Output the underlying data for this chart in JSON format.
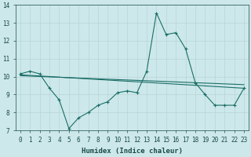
{
  "xlabel": "Humidex (Indice chaleur)",
  "xlim": [
    -0.5,
    23.5
  ],
  "ylim": [
    7,
    14
  ],
  "yticks": [
    7,
    8,
    9,
    10,
    11,
    12,
    13,
    14
  ],
  "xticks": [
    0,
    1,
    2,
    3,
    4,
    5,
    6,
    7,
    8,
    9,
    10,
    11,
    12,
    13,
    14,
    15,
    16,
    17,
    18,
    19,
    20,
    21,
    22,
    23
  ],
  "bg_color": "#cde8ea",
  "line_color": "#1a6e68",
  "grid_color": "#b8d4d6",
  "line1_x": [
    0,
    1,
    2,
    3,
    4,
    5,
    6,
    7,
    8,
    9,
    10,
    11,
    12,
    13,
    14,
    15,
    16,
    17,
    18,
    19,
    20,
    21,
    22,
    23
  ],
  "line1_y": [
    10.15,
    10.3,
    10.15,
    9.35,
    8.7,
    7.1,
    7.7,
    8.0,
    8.4,
    8.6,
    9.1,
    9.2,
    9.1,
    10.3,
    13.55,
    12.35,
    12.45,
    11.55,
    9.65,
    9.0,
    8.4,
    8.4,
    8.4,
    9.35
  ],
  "line2_x": [
    0,
    23
  ],
  "line2_y": [
    10.1,
    9.35
  ],
  "line3_x": [
    0,
    23
  ],
  "line3_y": [
    10.05,
    9.55
  ]
}
